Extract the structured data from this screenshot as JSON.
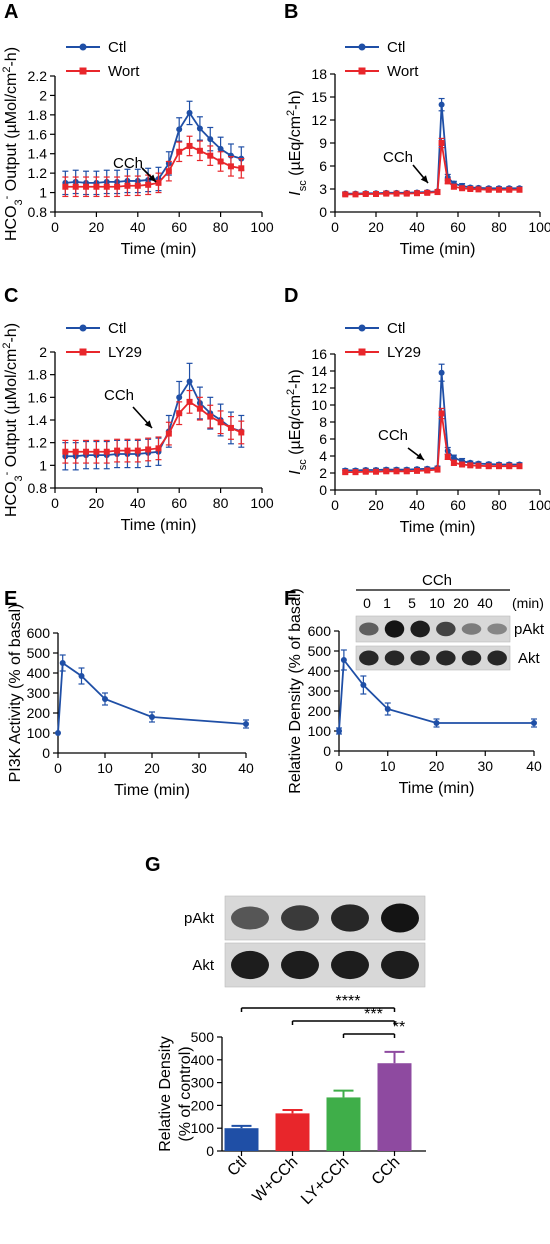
{
  "colors": {
    "ctl": "#1f4fa6",
    "treat": "#e8262b",
    "black": "#000000",
    "bar_ctl": "#1f4fa6",
    "bar_w": "#e8262b",
    "bar_ly": "#3fae49",
    "bar_cch": "#8e4aa0"
  },
  "chart_data": [
    {
      "id": "A",
      "type": "line",
      "panel_label": "A",
      "xlabel": "Time (min)",
      "ylabel": "HCO3- Output (µMol/cm2-h)",
      "ylabel_parts": [
        "HCO",
        "3",
        "-",
        " Output (µMol/cm",
        "2",
        "-h)"
      ],
      "xlim": [
        0,
        100
      ],
      "ylim": [
        0.8,
        2.2
      ],
      "xticks": [
        0,
        20,
        40,
        60,
        80,
        100
      ],
      "yticks": [
        0.8,
        1.0,
        1.2,
        1.4,
        1.6,
        1.8,
        2.0,
        2.2
      ],
      "annotation": "CCh",
      "x": [
        5,
        10,
        15,
        20,
        25,
        30,
        35,
        40,
        45,
        50,
        55,
        60,
        65,
        70,
        75,
        80,
        85,
        90
      ],
      "series": [
        {
          "name": "Ctl",
          "values": [
            1.1,
            1.11,
            1.1,
            1.1,
            1.11,
            1.11,
            1.12,
            1.12,
            1.13,
            1.14,
            1.3,
            1.65,
            1.82,
            1.66,
            1.55,
            1.45,
            1.38,
            1.35
          ],
          "err": [
            0.12,
            0.12,
            0.12,
            0.12,
            0.12,
            0.12,
            0.12,
            0.12,
            0.12,
            0.12,
            0.12,
            0.12,
            0.12,
            0.12,
            0.12,
            0.12,
            0.12,
            0.12
          ]
        },
        {
          "name": "Wort",
          "values": [
            1.06,
            1.06,
            1.06,
            1.06,
            1.06,
            1.06,
            1.07,
            1.07,
            1.08,
            1.1,
            1.22,
            1.42,
            1.48,
            1.43,
            1.38,
            1.32,
            1.27,
            1.25
          ],
          "err": [
            0.1,
            0.1,
            0.1,
            0.1,
            0.1,
            0.1,
            0.1,
            0.1,
            0.1,
            0.1,
            0.1,
            0.1,
            0.1,
            0.1,
            0.1,
            0.1,
            0.1,
            0.1
          ]
        }
      ]
    },
    {
      "id": "B",
      "type": "line",
      "panel_label": "B",
      "xlabel": "Time (min)",
      "ylabel": "Isc (µEq/cm2-h)",
      "ylabel_parts": [
        "I",
        "sc",
        " (µEq/cm",
        "2",
        "-h)"
      ],
      "xlim": [
        0,
        100
      ],
      "ylim": [
        0,
        18
      ],
      "xticks": [
        0,
        20,
        40,
        60,
        80,
        100
      ],
      "yticks": [
        0,
        3,
        6,
        9,
        12,
        15,
        18
      ],
      "annotation": "CCh",
      "x": [
        5,
        10,
        15,
        20,
        25,
        30,
        35,
        40,
        45,
        50,
        52,
        55,
        58,
        62,
        66,
        70,
        75,
        80,
        85,
        90
      ],
      "series": [
        {
          "name": "Ctl",
          "values": [
            2.4,
            2.4,
            2.45,
            2.45,
            2.5,
            2.5,
            2.5,
            2.55,
            2.6,
            2.7,
            14.0,
            4.5,
            3.7,
            3.4,
            3.2,
            3.15,
            3.1,
            3.1,
            3.1,
            3.1
          ],
          "err": [
            0.2,
            0.2,
            0.2,
            0.2,
            0.2,
            0.2,
            0.2,
            0.2,
            0.2,
            0.2,
            0.8,
            0.4,
            0.3,
            0.3,
            0.2,
            0.2,
            0.2,
            0.2,
            0.2,
            0.2
          ]
        },
        {
          "name": "Wort",
          "values": [
            2.3,
            2.3,
            2.35,
            2.35,
            2.4,
            2.4,
            2.4,
            2.45,
            2.5,
            2.6,
            9.0,
            4.0,
            3.3,
            3.1,
            3.0,
            2.95,
            2.9,
            2.9,
            2.9,
            2.9
          ],
          "err": [
            0.2,
            0.2,
            0.2,
            0.2,
            0.2,
            0.2,
            0.2,
            0.2,
            0.2,
            0.2,
            0.6,
            0.3,
            0.3,
            0.2,
            0.2,
            0.2,
            0.2,
            0.2,
            0.2,
            0.2
          ]
        }
      ]
    },
    {
      "id": "C",
      "type": "line",
      "panel_label": "C",
      "xlabel": "Time (min)",
      "ylabel": "HCO3- Output (µMol/cm2-h)",
      "ylabel_parts": [
        "HCO",
        "3",
        "-",
        " Output (µMol/cm",
        "2",
        "-h)"
      ],
      "xlim": [
        0,
        100
      ],
      "ylim": [
        0.8,
        2.0
      ],
      "xticks": [
        0,
        20,
        40,
        60,
        80,
        100
      ],
      "yticks": [
        0.8,
        1.0,
        1.2,
        1.4,
        1.6,
        1.8,
        2.0
      ],
      "annotation": "CCh",
      "x": [
        5,
        10,
        15,
        20,
        25,
        30,
        35,
        40,
        45,
        50,
        55,
        60,
        65,
        70,
        75,
        80,
        85,
        90
      ],
      "series": [
        {
          "name": "Ctl",
          "values": [
            1.08,
            1.08,
            1.09,
            1.09,
            1.09,
            1.1,
            1.1,
            1.1,
            1.11,
            1.12,
            1.3,
            1.6,
            1.74,
            1.55,
            1.46,
            1.4,
            1.33,
            1.3
          ],
          "err": [
            0.12,
            0.12,
            0.12,
            0.12,
            0.12,
            0.12,
            0.12,
            0.12,
            0.12,
            0.12,
            0.14,
            0.14,
            0.16,
            0.14,
            0.14,
            0.14,
            0.14,
            0.14
          ]
        },
        {
          "name": "LY29",
          "values": [
            1.12,
            1.12,
            1.12,
            1.12,
            1.12,
            1.13,
            1.13,
            1.13,
            1.14,
            1.15,
            1.28,
            1.46,
            1.56,
            1.5,
            1.43,
            1.38,
            1.33,
            1.29
          ],
          "err": [
            0.1,
            0.1,
            0.1,
            0.1,
            0.1,
            0.1,
            0.1,
            0.1,
            0.1,
            0.1,
            0.1,
            0.1,
            0.1,
            0.1,
            0.1,
            0.1,
            0.1,
            0.1
          ]
        }
      ]
    },
    {
      "id": "D",
      "type": "line",
      "panel_label": "D",
      "xlabel": "Time (min)",
      "ylabel": "Isc (µEq/cm2-h)",
      "ylabel_parts": [
        "I",
        "sc",
        " (µEq/cm",
        "2",
        "-h)"
      ],
      "xlim": [
        0,
        100
      ],
      "ylim": [
        0,
        16
      ],
      "xticks": [
        0,
        20,
        40,
        60,
        80,
        100
      ],
      "yticks": [
        0,
        2,
        4,
        6,
        8,
        10,
        12,
        14,
        16
      ],
      "annotation": "CCh",
      "x": [
        5,
        10,
        15,
        20,
        25,
        30,
        35,
        40,
        45,
        50,
        52,
        55,
        58,
        62,
        66,
        70,
        75,
        80,
        85,
        90
      ],
      "series": [
        {
          "name": "Ctl",
          "values": [
            2.3,
            2.3,
            2.35,
            2.35,
            2.4,
            2.4,
            2.4,
            2.45,
            2.5,
            2.6,
            13.8,
            4.6,
            3.8,
            3.4,
            3.2,
            3.1,
            3.05,
            3.0,
            3.0,
            3.0
          ],
          "err": [
            0.2,
            0.2,
            0.2,
            0.2,
            0.2,
            0.2,
            0.2,
            0.2,
            0.2,
            0.2,
            1.0,
            0.4,
            0.3,
            0.3,
            0.2,
            0.2,
            0.2,
            0.2,
            0.2,
            0.2
          ]
        },
        {
          "name": "LY29",
          "values": [
            2.1,
            2.1,
            2.15,
            2.15,
            2.2,
            2.2,
            2.2,
            2.25,
            2.3,
            2.4,
            9.0,
            3.9,
            3.2,
            3.0,
            2.9,
            2.85,
            2.8,
            2.8,
            2.8,
            2.8
          ],
          "err": [
            0.2,
            0.2,
            0.2,
            0.2,
            0.2,
            0.2,
            0.2,
            0.2,
            0.2,
            0.2,
            0.6,
            0.3,
            0.3,
            0.2,
            0.2,
            0.2,
            0.2,
            0.2,
            0.2,
            0.2
          ]
        }
      ]
    },
    {
      "id": "E",
      "type": "line",
      "panel_label": "E",
      "xlabel": "Time (min)",
      "ylabel": "PI3K Activity (% of basal)",
      "xlim": [
        0,
        40
      ],
      "ylim": [
        0,
        600
      ],
      "xticks": [
        0,
        10,
        20,
        30,
        40
      ],
      "yticks": [
        0,
        100,
        200,
        300,
        400,
        500,
        600
      ],
      "x": [
        0,
        1,
        5,
        10,
        20,
        40
      ],
      "series": [
        {
          "name": "",
          "values": [
            100,
            450,
            385,
            270,
            180,
            145
          ],
          "err": [
            0,
            40,
            40,
            30,
            25,
            20
          ]
        }
      ]
    },
    {
      "id": "F",
      "type": "line",
      "panel_label": "F",
      "xlabel": "Time (min)",
      "ylabel": "Relative Density (% of basal)",
      "xlim": [
        0,
        40
      ],
      "ylim": [
        0,
        600
      ],
      "xticks": [
        0,
        10,
        20,
        30,
        40
      ],
      "yticks": [
        0,
        100,
        200,
        300,
        400,
        500,
        600
      ],
      "x": [
        0,
        1,
        5,
        10,
        20,
        40
      ],
      "series": [
        {
          "name": "",
          "values": [
            100,
            455,
            330,
            210,
            140,
            140
          ],
          "err": [
            15,
            50,
            45,
            30,
            20,
            20
          ]
        }
      ],
      "blot": {
        "header": "CCh",
        "lanes": [
          "0",
          "1",
          "5",
          "10",
          "20",
          "40"
        ],
        "unit": "(min)",
        "rows": [
          {
            "label": "pAkt",
            "intensity": [
              0.55,
              0.95,
              0.9,
              0.7,
              0.4,
              0.35
            ]
          },
          {
            "label": "Akt",
            "intensity": [
              0.85,
              0.85,
              0.85,
              0.85,
              0.85,
              0.85
            ]
          }
        ]
      }
    },
    {
      "id": "G",
      "type": "bar",
      "panel_label": "G",
      "ylabel": "Relative Density (% of control)",
      "ylabel_lines": [
        "Relative Density",
        "(% of control)"
      ],
      "categories": [
        "Ctl",
        "W+CCh",
        "LY+CCh",
        "CCh"
      ],
      "values": [
        100,
        165,
        235,
        385
      ],
      "err": [
        10,
        15,
        30,
        50
      ],
      "ylim": [
        0,
        500
      ],
      "yticks": [
        0,
        100,
        200,
        300,
        400,
        500
      ],
      "significance": [
        "****",
        "***",
        "**"
      ],
      "blot": {
        "rows": [
          {
            "label": "pAkt",
            "intensity": [
              0.6,
              0.75,
              0.85,
              0.95
            ]
          },
          {
            "label": "Akt",
            "intensity": [
              0.9,
              0.9,
              0.9,
              0.9
            ]
          }
        ]
      }
    }
  ]
}
